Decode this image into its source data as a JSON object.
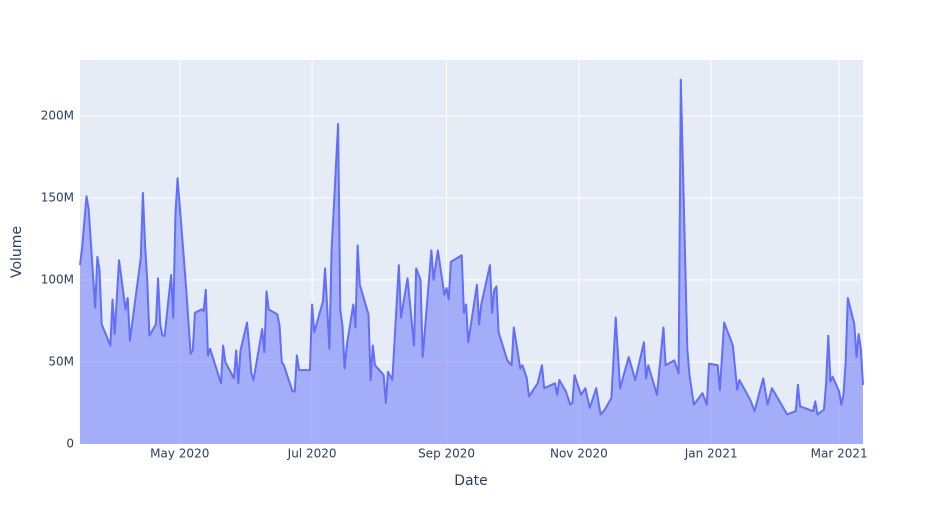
{
  "chart_data": {
    "type": "area",
    "x_label": "Date",
    "y_label": "Volume",
    "series": [
      {
        "name": "Volume",
        "color": "#636efa",
        "x": [
          "2020-03-16",
          "2020-03-17",
          "2020-03-19",
          "2020-03-20",
          "2020-03-23",
          "2020-03-24",
          "2020-03-25",
          "2020-03-26",
          "2020-03-30",
          "2020-03-31",
          "2020-04-01",
          "2020-04-03",
          "2020-04-06",
          "2020-04-07",
          "2020-04-08",
          "2020-04-09",
          "2020-04-13",
          "2020-04-14",
          "2020-04-15",
          "2020-04-16",
          "2020-04-17",
          "2020-04-20",
          "2020-04-21",
          "2020-04-22",
          "2020-04-23",
          "2020-04-24",
          "2020-04-27",
          "2020-04-28",
          "2020-04-29",
          "2020-04-30",
          "2020-05-04",
          "2020-05-06",
          "2020-05-07",
          "2020-05-08",
          "2020-05-11",
          "2020-05-12",
          "2020-05-13",
          "2020-05-14",
          "2020-05-15",
          "2020-05-20",
          "2020-05-21",
          "2020-05-22",
          "2020-05-26",
          "2020-05-27",
          "2020-05-28",
          "2020-05-29",
          "2020-06-01",
          "2020-06-02",
          "2020-06-03",
          "2020-06-04",
          "2020-06-08",
          "2020-06-09",
          "2020-06-10",
          "2020-06-11",
          "2020-06-15",
          "2020-06-16",
          "2020-06-17",
          "2020-06-18",
          "2020-06-22",
          "2020-06-23",
          "2020-06-24",
          "2020-06-25",
          "2020-06-26",
          "2020-06-30",
          "2020-07-01",
          "2020-07-02",
          "2020-07-06",
          "2020-07-07",
          "2020-07-09",
          "2020-07-10",
          "2020-07-13",
          "2020-07-14",
          "2020-07-15",
          "2020-07-16",
          "2020-07-17",
          "2020-07-20",
          "2020-07-21",
          "2020-07-22",
          "2020-07-23",
          "2020-07-27",
          "2020-07-28",
          "2020-07-29",
          "2020-07-30",
          "2020-08-03",
          "2020-08-04",
          "2020-08-05",
          "2020-08-07",
          "2020-08-10",
          "2020-08-11",
          "2020-08-14",
          "2020-08-17",
          "2020-08-18",
          "2020-08-20",
          "2020-08-21",
          "2020-08-25",
          "2020-08-26",
          "2020-08-28",
          "2020-08-31",
          "2020-09-01",
          "2020-09-02",
          "2020-09-03",
          "2020-09-08",
          "2020-09-09",
          "2020-09-10",
          "2020-09-11",
          "2020-09-15",
          "2020-09-16",
          "2020-09-17",
          "2020-09-21",
          "2020-09-22",
          "2020-09-23",
          "2020-09-24",
          "2020-09-25",
          "2020-09-29",
          "2020-10-01",
          "2020-10-02",
          "2020-10-05",
          "2020-10-06",
          "2020-10-08",
          "2020-10-09",
          "2020-10-13",
          "2020-10-15",
          "2020-10-16",
          "2020-10-21",
          "2020-10-22",
          "2020-10-23",
          "2020-10-26",
          "2020-10-28",
          "2020-10-29",
          "2020-10-30",
          "2020-11-02",
          "2020-11-04",
          "2020-11-06",
          "2020-11-09",
          "2020-11-11",
          "2020-11-13",
          "2020-11-16",
          "2020-11-18",
          "2020-11-20",
          "2020-11-24",
          "2020-11-27",
          "2020-12-01",
          "2020-12-02",
          "2020-12-03",
          "2020-12-07",
          "2020-12-10",
          "2020-12-11",
          "2020-12-15",
          "2020-12-17",
          "2020-12-18",
          "2020-12-21",
          "2020-12-22",
          "2020-12-24",
          "2020-12-28",
          "2020-12-30",
          "2020-12-31",
          "2021-01-04",
          "2021-01-05",
          "2021-01-07",
          "2021-01-11",
          "2021-01-13",
          "2021-01-14",
          "2021-01-19",
          "2021-01-21",
          "2021-01-25",
          "2021-01-27",
          "2021-01-29",
          "2021-02-02",
          "2021-02-05",
          "2021-02-09",
          "2021-02-10",
          "2021-02-11",
          "2021-02-17",
          "2021-02-18",
          "2021-02-19",
          "2021-02-22",
          "2021-02-23",
          "2021-02-24",
          "2021-02-25",
          "2021-02-26",
          "2021-03-01",
          "2021-03-02",
          "2021-03-03",
          "2021-03-04",
          "2021-03-05",
          "2021-03-08",
          "2021-03-09",
          "2021-03-10",
          "2021-03-11",
          "2021-03-12"
        ],
        "values": [
          109000000,
          120000000,
          151000000,
          143000000,
          83000000,
          114000000,
          106000000,
          73000000,
          60000000,
          88000000,
          67000000,
          112000000,
          82000000,
          89000000,
          63000000,
          73000000,
          113000000,
          153000000,
          121000000,
          100000000,
          66000000,
          73000000,
          101000000,
          73000000,
          66000000,
          66000000,
          103000000,
          77000000,
          140000000,
          162000000,
          94000000,
          55000000,
          57000000,
          80000000,
          82000000,
          81000000,
          94000000,
          54000000,
          58000000,
          37000000,
          60000000,
          50000000,
          40000000,
          57000000,
          37000000,
          57000000,
          74000000,
          60000000,
          43000000,
          39000000,
          70000000,
          56000000,
          93000000,
          82000000,
          79000000,
          72000000,
          50000000,
          48000000,
          32000000,
          32000000,
          54000000,
          45000000,
          45000000,
          45000000,
          85000000,
          68000000,
          87000000,
          107000000,
          58000000,
          118000000,
          195000000,
          82000000,
          72000000,
          46000000,
          60000000,
          85000000,
          71000000,
          121000000,
          97000000,
          79000000,
          39000000,
          60000000,
          48000000,
          42000000,
          25000000,
          44000000,
          39000000,
          109000000,
          77000000,
          101000000,
          60000000,
          107000000,
          100000000,
          53000000,
          118000000,
          100000000,
          118000000,
          91000000,
          95000000,
          88000000,
          111000000,
          115000000,
          80000000,
          85000000,
          62000000,
          97000000,
          73000000,
          85000000,
          109000000,
          80000000,
          94000000,
          96000000,
          68000000,
          51000000,
          48000000,
          71000000,
          46000000,
          48000000,
          40000000,
          29000000,
          37000000,
          48000000,
          34000000,
          37000000,
          30000000,
          39000000,
          32000000,
          24000000,
          25000000,
          42000000,
          30000000,
          34000000,
          22000000,
          34000000,
          18000000,
          21000000,
          28000000,
          77000000,
          34000000,
          53000000,
          39000000,
          62000000,
          40000000,
          48000000,
          30000000,
          71000000,
          48000000,
          51000000,
          43000000,
          222000000,
          58000000,
          42000000,
          24000000,
          31000000,
          24000000,
          49000000,
          48000000,
          33000000,
          74000000,
          60000000,
          33000000,
          39000000,
          27000000,
          20000000,
          40000000,
          24000000,
          34000000,
          25000000,
          18000000,
          20000000,
          36000000,
          23000000,
          20000000,
          26000000,
          18000000,
          21000000,
          37000000,
          66000000,
          38000000,
          41000000,
          32000000,
          24000000,
          30000000,
          50000000,
          89000000,
          73000000,
          53000000,
          67000000,
          58000000,
          36000000
        ]
      }
    ],
    "xlim": [
      "2020-03-16",
      "2021-03-12"
    ],
    "xticks": [
      {
        "value": "2020-05-01",
        "label": "May 2020"
      },
      {
        "value": "2020-07-01",
        "label": "Jul 2020"
      },
      {
        "value": "2020-09-01",
        "label": "Sep 2020"
      },
      {
        "value": "2020-11-01",
        "label": "Nov 2020"
      },
      {
        "value": "2021-01-01",
        "label": "Jan 2021"
      },
      {
        "value": "2021-03-01",
        "label": "Mar 2021"
      }
    ],
    "ylim": [
      0,
      234000000
    ],
    "yticks": [
      0,
      {
        "value": 50000000,
        "label": "50M"
      },
      {
        "value": 100000000,
        "label": "100M"
      },
      {
        "value": 150000000,
        "label": "150M"
      },
      {
        "value": 200000000,
        "label": "200M"
      }
    ],
    "grid": true
  }
}
